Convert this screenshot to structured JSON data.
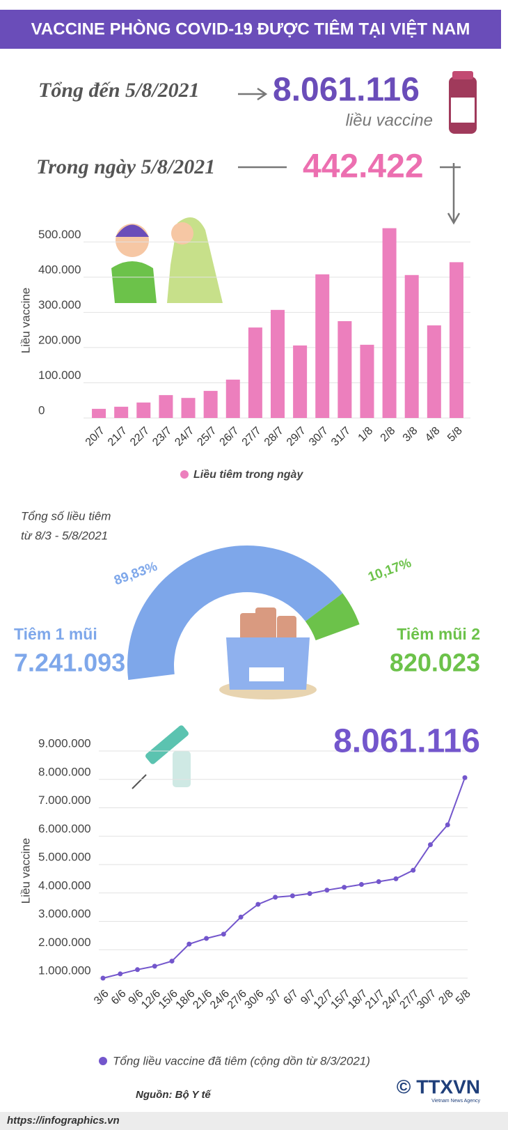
{
  "title": "VACCINE PHÒNG COVID-19 ĐƯỢC TIÊM TẠI VIỆT NAM",
  "total": {
    "label": "Tổng đến 5/8/2021",
    "value": "8.061.116",
    "unit": "liều vaccine"
  },
  "today": {
    "label": "Trong ngày 5/8/2021",
    "value": "442.422"
  },
  "chart_data": [
    {
      "type": "bar",
      "y_label": "Liều vaccine",
      "categories": [
        "20/7",
        "21/7",
        "22/7",
        "23/7",
        "24/7",
        "25/7",
        "26/7",
        "27/7",
        "28/7",
        "29/7",
        "30/7",
        "31/7",
        "1/8",
        "2/8",
        "3/8",
        "4/8",
        "5/8"
      ],
      "series": [
        {
          "name": "Liều tiêm trong ngày",
          "color": "#ec7fbd",
          "values": [
            26000,
            32000,
            44000,
            65000,
            57000,
            77000,
            109000,
            257000,
            307000,
            206000,
            408000,
            275000,
            208000,
            539000,
            406000,
            263000,
            442422
          ]
        }
      ],
      "ylim": [
        0,
        550000
      ],
      "yticks": [
        0,
        {
          "value": 100000,
          "label": "100.000"
        },
        {
          "value": 200000,
          "label": "200.000"
        },
        {
          "value": 300000,
          "label": "300.000"
        },
        {
          "value": 400000,
          "label": "400.000"
        },
        {
          "value": 500000,
          "label": "500.000"
        }
      ],
      "grid": true
    },
    {
      "type": "pie",
      "title": [
        "Tổng số liều tiêm",
        "từ 8/3 - 5/8/2021"
      ],
      "categories": [
        "Tiêm 1 mũi",
        "Tiêm mũi 2"
      ],
      "values": [
        89.83,
        10.17
      ],
      "value_labels": [
        "89,83%",
        "10,17%"
      ],
      "totals": [
        "7.241.093",
        "820.023"
      ],
      "colors": [
        "#7ea7ea",
        "#6cc24a"
      ]
    },
    {
      "type": "line",
      "y_label": "Liều vaccine",
      "annotation": "8.061.116",
      "categories": [
        "3/6",
        "6/6",
        "9/6",
        "12/6",
        "15/6",
        "18/6",
        "21/6",
        "24/6",
        "27/6",
        "30/6",
        "3/7",
        "6/7",
        "9/7",
        "12/7",
        "15/7",
        "18/7",
        "21/7",
        "24/7",
        "27/7",
        "30/7",
        "2/8",
        "5/8"
      ],
      "series": [
        {
          "name": "Tổng liều vaccine đã tiêm (cộng dồn từ 8/3/2021)",
          "color": "#7356cc",
          "values": [
            1000000,
            1150000,
            1300000,
            1420000,
            1600000,
            2200000,
            2400000,
            2550000,
            3150000,
            3600000,
            3850000,
            3900000,
            3980000,
            4100000,
            4200000,
            4300000,
            4400000,
            4500000,
            4800000,
            5700000,
            6400000,
            8061116
          ]
        }
      ],
      "ylim": [
        900000,
        9300000
      ],
      "yticks": [
        {
          "value": 1000000,
          "label": "1.000.000"
        },
        {
          "value": 2000000,
          "label": "2.000.000"
        },
        {
          "value": 3000000,
          "label": "3.000.000"
        },
        {
          "value": 4000000,
          "label": "4.000.000"
        },
        {
          "value": 5000000,
          "label": "5.000.000"
        },
        {
          "value": 6000000,
          "label": "6.000.000"
        },
        {
          "value": 7000000,
          "label": "7.000.000"
        },
        {
          "value": 8000000,
          "label": "8.000.000"
        },
        {
          "value": 9000000,
          "label": "9.000.000"
        }
      ],
      "grid": true
    }
  ],
  "source": "Nguồn: Bộ Y tế",
  "url": "https://infographics.vn",
  "logo": "© TTXVN",
  "logo_sub": "Vietnam News Agency"
}
